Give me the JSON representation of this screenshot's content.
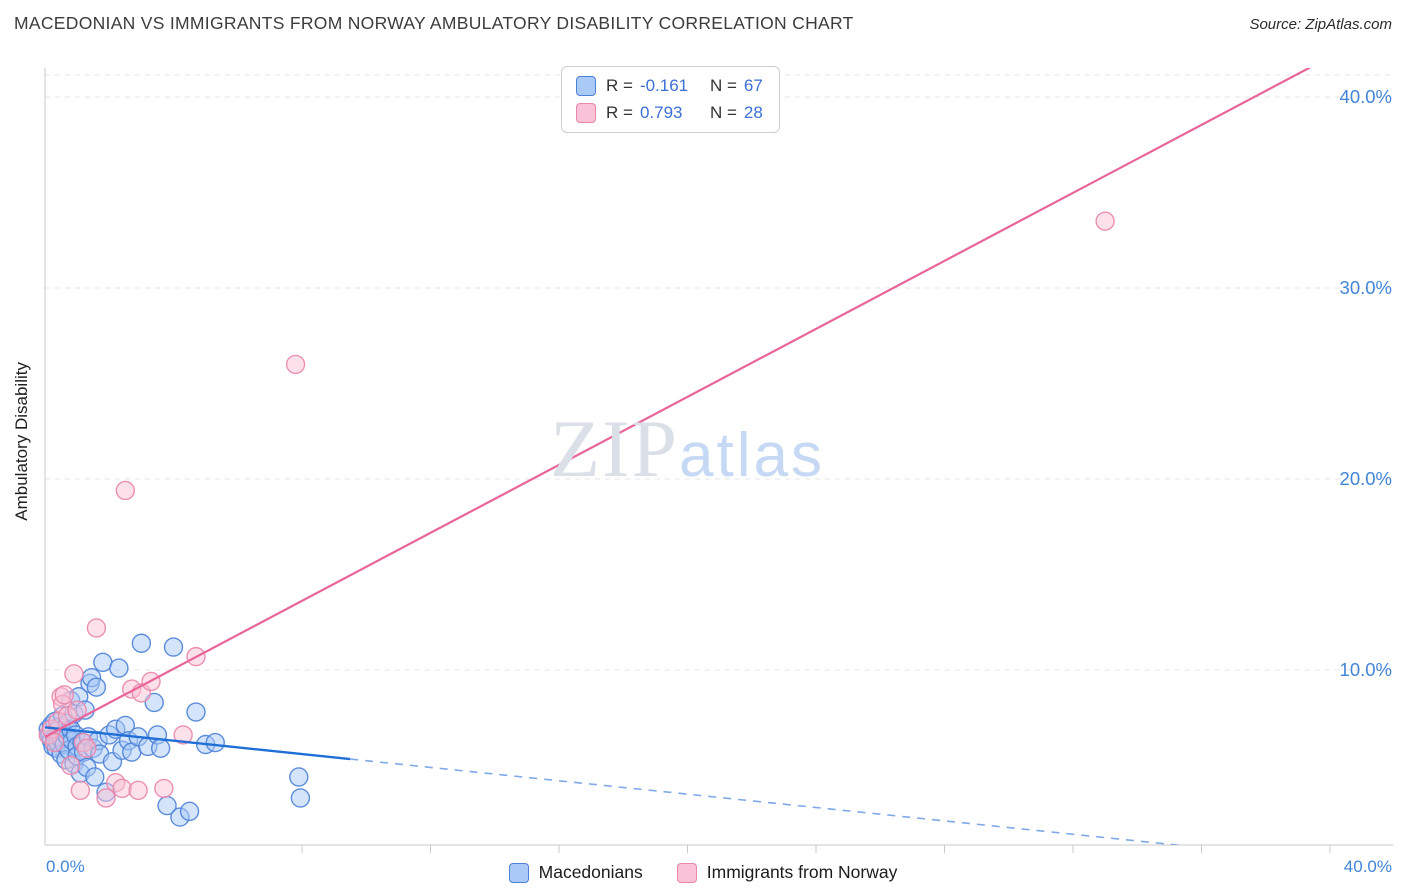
{
  "header": {
    "title": "MACEDONIAN VS IMMIGRANTS FROM NORWAY AMBULATORY DISABILITY CORRELATION CHART",
    "source": "Source: ZipAtlas.com"
  },
  "watermark": {
    "zip": "ZIP",
    "atlas": "atlas"
  },
  "y_axis": {
    "title": "Ambulatory Disability",
    "tick_labels": [
      "40.0%",
      "30.0%",
      "20.0%",
      "10.0%"
    ],
    "tick_values": [
      40,
      30,
      20,
      10
    ]
  },
  "x_axis": {
    "left_label": "0.0%",
    "right_label": "40.0%",
    "minor_tick_values": [
      8,
      12,
      16,
      20,
      24,
      28,
      32,
      36,
      40
    ]
  },
  "legend_box": {
    "rows": [
      {
        "series": "Macedonians",
        "r_label": "R =",
        "r_value": "-0.161",
        "n_label": "N =",
        "n_value": "67"
      },
      {
        "series": "Immigrants from Norway",
        "r_label": "R =",
        "r_value": "0.793",
        "n_label": "N =",
        "n_value": "28"
      }
    ]
  },
  "bottom_legend": {
    "items": [
      {
        "label": "Macedonians"
      },
      {
        "label": "Immigrants from Norway"
      }
    ]
  },
  "chart_data": {
    "type": "scatter",
    "title": "MACEDONIAN VS IMMIGRANTS FROM NORWAY AMBULATORY DISABILITY CORRELATION CHART",
    "xlabel": "",
    "ylabel": "Ambulatory Disability",
    "x_units": "percent",
    "y_units": "percent",
    "xlim": [
      0,
      42
    ],
    "ylim": [
      0,
      41.5
    ],
    "grid_values": [
      10,
      20,
      30,
      40
    ],
    "legend_position": "bottom",
    "series": [
      {
        "name": "Macedonians",
        "R": -0.161,
        "N": 67,
        "color": "#a9c9f7",
        "edge": "#4d82d6",
        "points": [
          [
            0.1,
            6.9
          ],
          [
            0.15,
            6.6
          ],
          [
            0.2,
            7.1
          ],
          [
            0.2,
            6.3
          ],
          [
            0.25,
            6.0
          ],
          [
            0.3,
            7.3
          ],
          [
            0.3,
            6.5
          ],
          [
            0.35,
            5.9
          ],
          [
            0.4,
            6.8
          ],
          [
            0.4,
            6.2
          ],
          [
            0.45,
            7.0
          ],
          [
            0.5,
            6.4
          ],
          [
            0.5,
            5.6
          ],
          [
            0.55,
            7.6
          ],
          [
            0.6,
            6.7
          ],
          [
            0.6,
            6.1
          ],
          [
            0.65,
            5.3
          ],
          [
            0.7,
            7.2
          ],
          [
            0.7,
            6.5
          ],
          [
            0.75,
            5.8
          ],
          [
            0.8,
            8.4
          ],
          [
            0.8,
            6.9
          ],
          [
            0.85,
            6.3
          ],
          [
            0.9,
            5.1
          ],
          [
            0.9,
            7.7
          ],
          [
            0.95,
            6.6
          ],
          [
            1.0,
            6.0
          ],
          [
            1.0,
            5.5
          ],
          [
            1.05,
            8.6
          ],
          [
            1.1,
            4.6
          ],
          [
            1.15,
            6.2
          ],
          [
            1.2,
            5.7
          ],
          [
            1.25,
            7.9
          ],
          [
            1.3,
            4.9
          ],
          [
            1.35,
            6.5
          ],
          [
            1.4,
            9.3
          ],
          [
            1.45,
            9.6
          ],
          [
            1.5,
            5.9
          ],
          [
            1.55,
            4.4
          ],
          [
            1.6,
            9.1
          ],
          [
            1.65,
            6.3
          ],
          [
            1.7,
            5.6
          ],
          [
            1.8,
            10.4
          ],
          [
            1.9,
            3.6
          ],
          [
            2.0,
            6.6
          ],
          [
            2.1,
            5.2
          ],
          [
            2.2,
            6.9
          ],
          [
            2.3,
            10.1
          ],
          [
            2.4,
            5.8
          ],
          [
            2.5,
            7.1
          ],
          [
            2.6,
            6.3
          ],
          [
            2.7,
            5.7
          ],
          [
            2.9,
            6.5
          ],
          [
            3.0,
            11.4
          ],
          [
            3.2,
            6.0
          ],
          [
            3.4,
            8.3
          ],
          [
            3.5,
            6.6
          ],
          [
            3.6,
            5.9
          ],
          [
            3.8,
            2.9
          ],
          [
            4.0,
            11.2
          ],
          [
            4.2,
            2.3
          ],
          [
            4.5,
            2.6
          ],
          [
            4.7,
            7.8
          ],
          [
            5.0,
            6.1
          ],
          [
            5.3,
            6.2
          ],
          [
            7.9,
            4.4
          ],
          [
            7.95,
            3.3
          ]
        ]
      },
      {
        "name": "Immigrants from Norway",
        "R": 0.793,
        "N": 28,
        "color": "#f9c2d6",
        "edge": "#e886ab",
        "points": [
          [
            0.1,
            6.6
          ],
          [
            0.2,
            6.9
          ],
          [
            0.3,
            6.2
          ],
          [
            0.4,
            7.3
          ],
          [
            0.5,
            8.6
          ],
          [
            0.55,
            8.2
          ],
          [
            0.6,
            8.7
          ],
          [
            0.7,
            7.6
          ],
          [
            0.8,
            5.0
          ],
          [
            0.9,
            9.8
          ],
          [
            1.0,
            7.9
          ],
          [
            1.1,
            3.7
          ],
          [
            1.2,
            6.2
          ],
          [
            1.3,
            5.9
          ],
          [
            1.6,
            12.2
          ],
          [
            1.9,
            3.3
          ],
          [
            2.5,
            19.4
          ],
          [
            2.2,
            4.1
          ],
          [
            2.4,
            3.8
          ],
          [
            2.7,
            9.0
          ],
          [
            3.0,
            8.8
          ],
          [
            3.3,
            9.4
          ],
          [
            4.3,
            6.6
          ],
          [
            4.7,
            10.7
          ],
          [
            3.7,
            3.8
          ],
          [
            2.9,
            3.7
          ],
          [
            7.8,
            26.0
          ],
          [
            33.0,
            33.5
          ]
        ]
      }
    ],
    "trend_lines": [
      {
        "series": "Macedonians",
        "start": [
          0,
          7.0
        ],
        "end": [
          40,
          0.0
        ],
        "solid_until": 9.5,
        "color": "#1f6fd6",
        "dash_color": "#7fa9e8"
      },
      {
        "series": "Immigrants from Norway",
        "start": [
          0,
          6.5
        ],
        "end": [
          40,
          42.1
        ],
        "color": "#e8659a"
      }
    ]
  }
}
